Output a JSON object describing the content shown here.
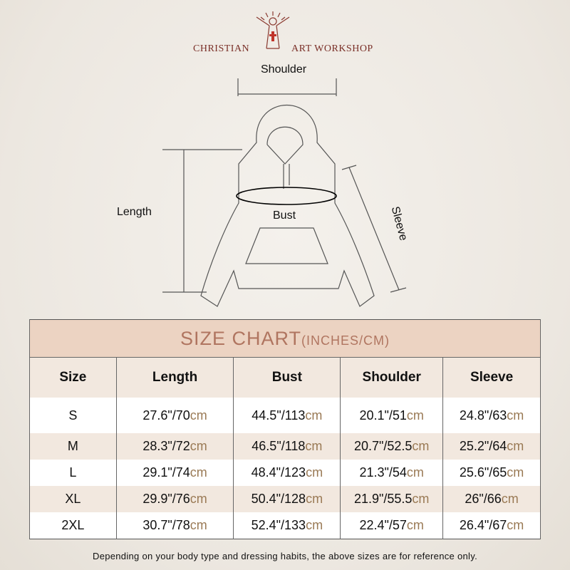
{
  "brand": {
    "left": "CHRISTIAN",
    "right": "ART WORKSHOP"
  },
  "diagram": {
    "shoulder": "Shoulder",
    "length": "Length",
    "bust": "Bust",
    "sleeve": "Sleeve"
  },
  "table": {
    "title": "SIZE CHART",
    "title_units": "(INCHES/CM)",
    "headers": [
      "Size",
      "Length",
      "Bust",
      "Shoulder",
      "Sleeve"
    ],
    "rows": [
      {
        "size": "S",
        "length": [
          "27.6\"/70",
          "cm"
        ],
        "bust": [
          "44.5\"/113",
          "cm"
        ],
        "shoulder": [
          "20.1\"/51",
          "cm"
        ],
        "sleeve": [
          "24.8\"/63",
          "cm"
        ]
      },
      {
        "size": "M",
        "length": [
          "28.3\"/72",
          "cm"
        ],
        "bust": [
          "46.5\"/118",
          "cm"
        ],
        "shoulder": [
          "20.7\"/52.5",
          "cm"
        ],
        "sleeve": [
          "25.2\"/64",
          "cm"
        ]
      },
      {
        "size": "L",
        "length": [
          "29.1\"/74",
          "cm"
        ],
        "bust": [
          "48.4\"/123",
          "cm"
        ],
        "shoulder": [
          "21.3\"/54",
          "cm"
        ],
        "sleeve": [
          "25.6\"/65",
          "cm"
        ]
      },
      {
        "size": "XL",
        "length": [
          "29.9\"/76",
          "cm"
        ],
        "bust": [
          "50.4\"/128",
          "cm"
        ],
        "shoulder": [
          "21.9\"/55.5",
          "cm"
        ],
        "sleeve": [
          "26\"/66",
          "cm"
        ]
      },
      {
        "size": "2XL",
        "length": [
          "30.7\"/78",
          "cm"
        ],
        "bust": [
          "52.4\"/133",
          "cm"
        ],
        "shoulder": [
          "22.4\"/57",
          "cm"
        ],
        "sleeve": [
          "26.4\"/67",
          "cm"
        ]
      }
    ]
  },
  "note": "Depending on your body type and dressing habits, the above sizes are for reference only."
}
